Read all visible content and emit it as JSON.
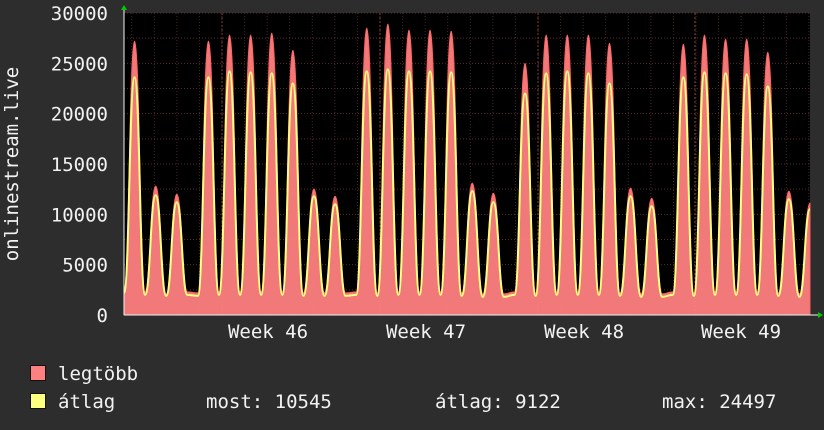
{
  "chart_data": {
    "type": "area",
    "ylabel": "onlinestream.live",
    "ylim": [
      0,
      30000
    ],
    "yticks": [
      0,
      5000,
      10000,
      15000,
      20000,
      25000,
      30000
    ],
    "week_labels": [
      "Week 46",
      "Week 47",
      "Week 48",
      "Week 49"
    ],
    "grid": true,
    "series": [
      {
        "name": "legtöbb",
        "color": "#ff8080",
        "values": [
          2500,
          27200,
          2300,
          12800,
          2100,
          12000,
          2300,
          2200,
          27200,
          2300,
          27800,
          2300,
          27800,
          2300,
          28000,
          2300,
          26300,
          2200,
          12500,
          2200,
          11800,
          2200,
          2300,
          28500,
          2200,
          28900,
          2300,
          28300,
          2300,
          28300,
          2300,
          28200,
          2200,
          13100,
          2100,
          12100,
          2100,
          2300,
          25000,
          2200,
          27800,
          2300,
          27800,
          2300,
          27800,
          2300,
          27000,
          2200,
          12600,
          2100,
          11600,
          2100,
          2300,
          26900,
          2200,
          27800,
          2300,
          27400,
          2300,
          27400,
          2300,
          26100,
          2200,
          12300,
          2100,
          11100
        ]
      },
      {
        "name": "átlag",
        "color": "#ffff80",
        "values": [
          2200,
          23600,
          2000,
          11900,
          1900,
          11200,
          2000,
          1900,
          23600,
          2000,
          24200,
          2000,
          24100,
          2000,
          24000,
          2000,
          23000,
          1900,
          11800,
          1900,
          11000,
          1900,
          2000,
          24200,
          1900,
          24400,
          2000,
          24200,
          2000,
          24200,
          2000,
          24100,
          1900,
          12300,
          1800,
          11200,
          1800,
          2000,
          22000,
          1900,
          24000,
          2000,
          24200,
          2000,
          24000,
          2000,
          23000,
          1900,
          11800,
          1800,
          10800,
          1800,
          2000,
          23600,
          1900,
          24100,
          2000,
          24000,
          2000,
          23900,
          2000,
          22700,
          1900,
          11500,
          1800,
          10500
        ]
      }
    ],
    "stats": {
      "most_label": "most:",
      "most_value": "10545",
      "atlag_label": "átlag:",
      "atlag_value": "9122",
      "max_label": "max:",
      "max_value": "24497"
    }
  }
}
